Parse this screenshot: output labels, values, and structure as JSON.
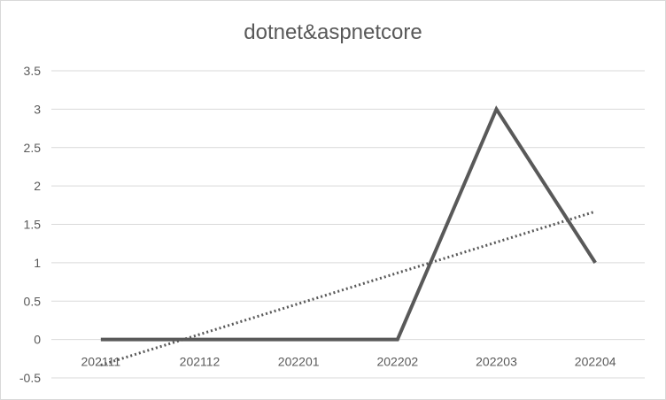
{
  "chart_data": {
    "type": "line",
    "title": "dotnet&aspnetcore",
    "xlabel": "",
    "ylabel": "",
    "categories": [
      "202111",
      "202112",
      "202201",
      "202202",
      "202203",
      "202204"
    ],
    "series": [
      {
        "values": [
          0,
          0,
          0,
          0,
          3,
          1
        ],
        "color": "#595959"
      }
    ],
    "trendline": {
      "kind": "linear",
      "style": "dotted",
      "color": "#595959"
    },
    "yticks": [
      "-0.5",
      "0",
      "0.5",
      "1",
      "1.5",
      "2",
      "2.5",
      "3",
      "3.5"
    ],
    "ylim": [
      -0.5,
      3.5
    ],
    "grid": true,
    "legend": "none"
  }
}
